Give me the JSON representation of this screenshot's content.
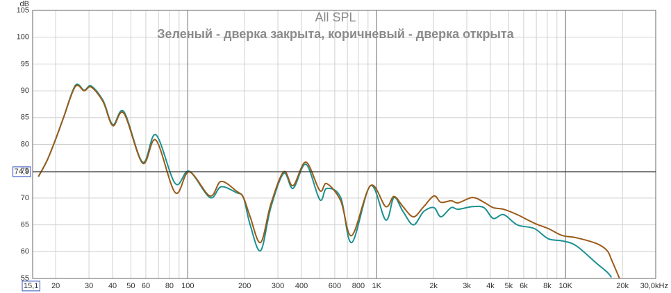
{
  "chart_data": {
    "type": "line",
    "title": "All SPL",
    "subtitle": "Зеленый - дверка закрыта, коричневый - дверка открыта",
    "y_label": "dB",
    "x_scale": "log",
    "xlim": [
      15.1,
      30000
    ],
    "ylim": [
      55,
      105
    ],
    "xticks": [
      {
        "value": 15.1,
        "label": "15,1"
      },
      20,
      30,
      40,
      50,
      60,
      80,
      100,
      200,
      300,
      400,
      600,
      800,
      {
        "value": 1000,
        "label": "1K"
      },
      {
        "value": 2000,
        "label": "2k"
      },
      {
        "value": 3000,
        "label": "3k"
      },
      {
        "value": 4000,
        "label": "4k"
      },
      {
        "value": 5000,
        "label": "5k"
      },
      {
        "value": 6000,
        "label": "6k"
      },
      {
        "value": 8000,
        "label": "8k"
      },
      {
        "value": 10000,
        "label": "10K"
      },
      {
        "value": 20000,
        "label": "20k"
      },
      {
        "value": 30000,
        "label": "30,0kHz"
      }
    ],
    "x_minor_ticks": [
      70,
      90,
      500,
      700,
      900,
      7000,
      9000
    ],
    "x_major_ticks": [
      100,
      1000,
      10000
    ],
    "yticks": [
      55,
      60,
      65,
      70,
      75,
      80,
      85,
      90,
      95,
      100,
      105
    ],
    "grid": true,
    "cursor": {
      "value": 74.9,
      "label": "74,9"
    },
    "x": [
      16.2,
      18,
      20,
      22,
      25.4,
      28.3,
      30.8,
      35.6,
      40.1,
      45.9,
      57.7,
      67.8,
      85.9,
      101.7,
      131,
      150,
      181,
      197,
      214,
      243,
      275,
      322,
      361,
      422,
      500,
      544,
      645,
      738,
      927,
      1117,
      1235,
      1378,
      1566,
      1775,
      2012,
      2188,
      2479,
      2697,
      3216,
      3700,
      4140,
      4702,
      5550,
      6840,
      8100,
      9610,
      11380,
      14620,
      16580,
      17500,
      19300
    ],
    "series": [
      {
        "color": "#1a9090",
        "values": [
          74.0,
          77,
          81,
          85,
          91.0,
          90.1,
          90.9,
          88.2,
          83.7,
          86.1,
          76.7,
          81.8,
          72.7,
          75.0,
          70.1,
          72.1,
          71.0,
          70.1,
          65.0,
          60.2,
          68.2,
          74.6,
          71.8,
          76.3,
          69.7,
          71.8,
          70.1,
          61.7,
          72.3,
          65.9,
          70.1,
          67.5,
          65.0,
          67.5,
          68.2,
          66.5,
          68.2,
          67.9,
          68.4,
          68.2,
          66.2,
          66.9,
          65.0,
          64.3,
          62.4,
          62.0,
          61.1,
          57.8,
          56.2,
          55.2,
          null
        ]
      },
      {
        "color": "#9b5a18",
        "values": [
          74.0,
          77,
          81,
          85,
          90.8,
          90.0,
          90.7,
          88.0,
          83.5,
          85.8,
          76.5,
          80.8,
          71.0,
          74.9,
          70.4,
          73.1,
          71.3,
          70.1,
          66.5,
          61.7,
          68.8,
          74.9,
          72.3,
          76.7,
          71.4,
          72.7,
          69.5,
          63.0,
          72.3,
          68.4,
          70.3,
          68.4,
          66.5,
          68.4,
          70.4,
          69.2,
          69.5,
          69.1,
          70.1,
          69.2,
          68.2,
          67.9,
          66.9,
          65.3,
          64.3,
          63.0,
          62.6,
          61.5,
          60.2,
          58.5,
          55.0
        ]
      }
    ]
  }
}
